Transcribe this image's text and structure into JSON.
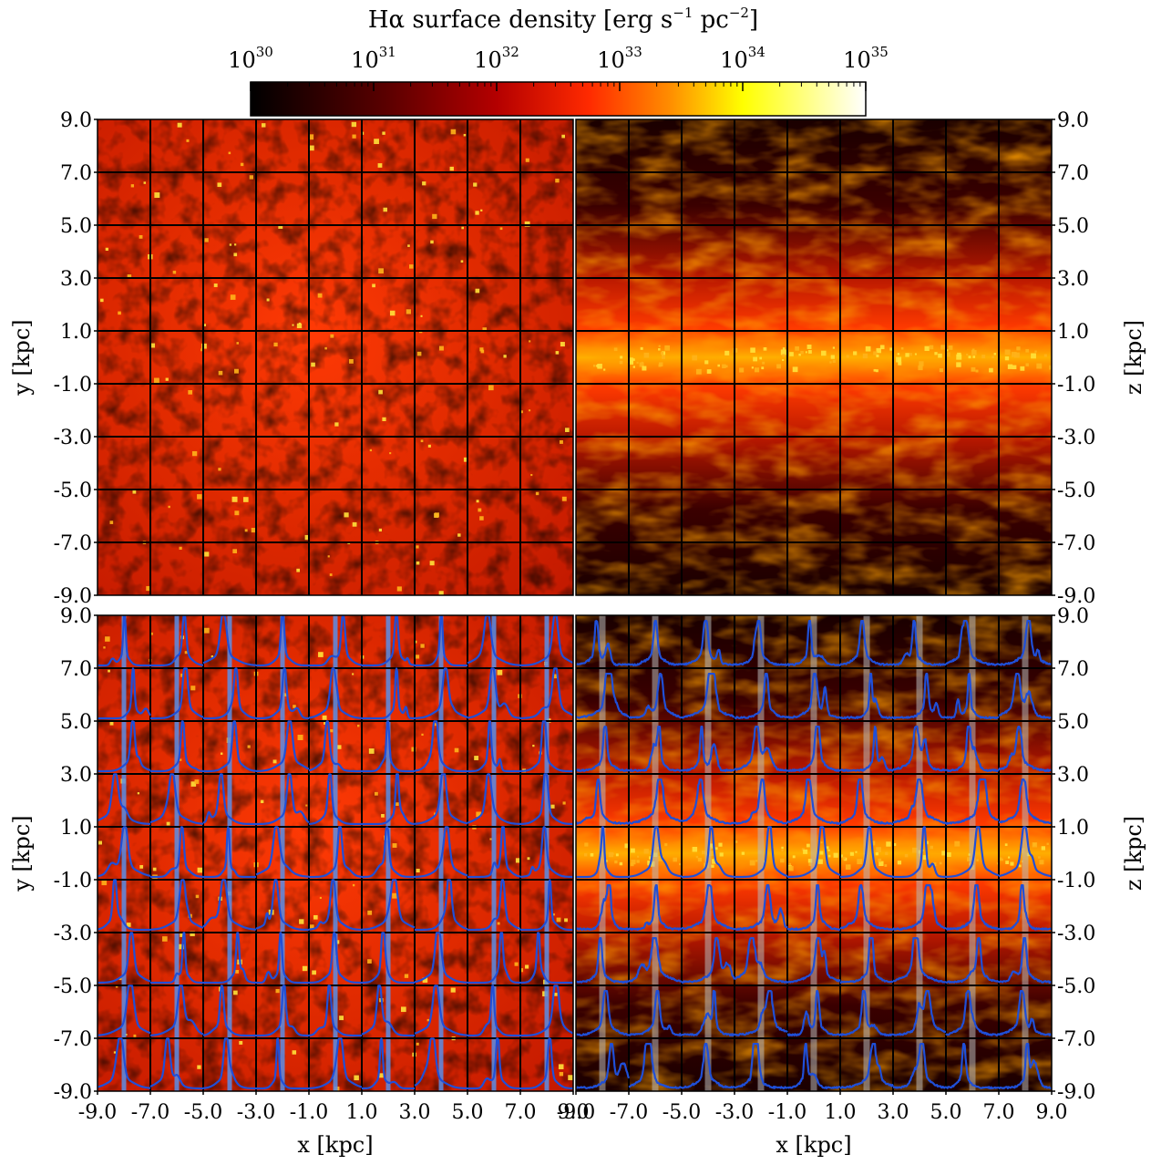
{
  "colorbar": {
    "title_main": "Hα surface density [erg s",
    "title_exp1": "−1",
    "title_mid": " pc",
    "title_exp2": "−2",
    "title_end": "]",
    "tick_base": "10",
    "tick_exponents": [
      "30",
      "31",
      "32",
      "33",
      "34",
      "35"
    ],
    "range_log10": [
      30,
      35
    ],
    "colormap": "hot",
    "colors": [
      "#000000",
      "#5a0000",
      "#b40000",
      "#ff2a00",
      "#ff8c00",
      "#ffff00",
      "#ffffff"
    ]
  },
  "axes_labels": {
    "x": "x [kpc]",
    "y": "y [kpc]",
    "z": "z [kpc]"
  },
  "tick_labels": [
    "9.0",
    "7.0",
    "5.0",
    "3.0",
    "1.0",
    "-1.0",
    "-3.0",
    "-5.0",
    "-7.0",
    "-9.0"
  ],
  "x_tick_labels": [
    "-9.0",
    "-7.0",
    "-5.0",
    "-3.0",
    "-1.0",
    "1.0",
    "3.0",
    "5.0",
    "7.0",
    "9.0"
  ],
  "overlay_colors": {
    "line_profile": "#1f4fd8",
    "velocity_marker_faceon": "#5b8ee6",
    "velocity_marker_edgeon": "#b8b8b8",
    "grid": "#000000"
  },
  "chart_data": [
    {
      "type": "heatmap",
      "panel": "top-left (face-on)",
      "xlabel": "",
      "ylabel": "y [kpc]",
      "xlim": [
        -9,
        9
      ],
      "ylim": [
        -9,
        9
      ],
      "grid": true,
      "grid_spacing_kpc": 2,
      "value_scale": "log10 Hα surface density",
      "mean_log10_level": 31.9
    },
    {
      "type": "heatmap",
      "panel": "top-right (edge-on)",
      "xlabel": "",
      "ylabel": "z [kpc]",
      "xlim": [
        -9,
        9
      ],
      "ylim": [
        -9,
        9
      ],
      "grid": true,
      "grid_spacing_kpc": 2,
      "value_scale": "log10 Hα surface density",
      "midplane_log10_level": 33.4,
      "halo_log10_level": 30.3
    },
    {
      "type": "heatmap",
      "panel": "bottom-left (face-on with Hα line profiles per cell)",
      "xlabel": "x [kpc]",
      "ylabel": "y [kpc]",
      "xlim": [
        -9,
        9
      ],
      "ylim": [
        -9,
        9
      ],
      "grid": true,
      "grid_spacing_kpc": 2,
      "overlay": "normalized Hα line profile in each 2 kpc cell",
      "profile_cell_centers_x": [
        -8,
        -6,
        -4,
        -2,
        0,
        2,
        4,
        6,
        8
      ],
      "profile_cell_centers_y": [
        8,
        6,
        4,
        2,
        0,
        -2,
        -4,
        -6,
        -8
      ]
    },
    {
      "type": "heatmap",
      "panel": "bottom-right (edge-on with Hα line profiles per cell)",
      "xlabel": "x [kpc]",
      "ylabel": "z [kpc]",
      "xlim": [
        -9,
        9
      ],
      "ylim": [
        -9,
        9
      ],
      "grid": true,
      "grid_spacing_kpc": 2,
      "overlay": "normalized Hα line profile in each 2 kpc cell",
      "profile_cell_centers_x": [
        -8,
        -6,
        -4,
        -2,
        0,
        2,
        4,
        6,
        8
      ],
      "profile_cell_centers_z": [
        8,
        6,
        4,
        2,
        0,
        -2,
        -4,
        -6,
        -8
      ]
    }
  ]
}
